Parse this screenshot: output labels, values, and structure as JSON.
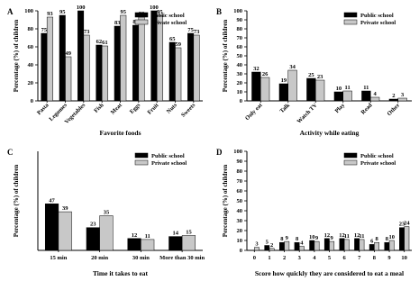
{
  "chart_data": [
    {
      "type": "bar",
      "label": "A",
      "xlabel": "Favorite foods",
      "ylabel": "Percentage (%) of children",
      "categories": [
        "Pasta",
        "Legumes",
        "Vegetables",
        "Fish",
        "Meat",
        "Eggs",
        "Fruit",
        "Nuts",
        "Sweets"
      ],
      "series": [
        {
          "name": "Public school",
          "color": "#000000",
          "values": [
            75,
            95,
            100,
            62,
            83,
            84,
            100,
            65,
            75
          ]
        },
        {
          "name": "Private school",
          "color": "#c8c8c8",
          "values": [
            93,
            49,
            73,
            61,
            95,
            93,
            95,
            59,
            73
          ]
        }
      ],
      "ylim": [
        0,
        100
      ],
      "yticks": [
        0,
        20,
        40,
        60,
        80,
        100
      ],
      "legend": "upper right"
    },
    {
      "type": "bar",
      "label": "B",
      "xlabel": "Activity while eating",
      "ylabel": "Percentage (%) of children",
      "categories": [
        "Only eat",
        "Talk",
        "Watch TV",
        "Play",
        "Read",
        "Other"
      ],
      "series": [
        {
          "name": "Public school",
          "color": "#000000",
          "values": [
            32,
            19,
            25,
            10,
            11,
            2
          ]
        },
        {
          "name": "Private school",
          "color": "#c8c8c8",
          "values": [
            26,
            34,
            23,
            11,
            4,
            3
          ]
        }
      ],
      "ylim": [
        0,
        100
      ],
      "yticks": [
        0,
        10,
        20,
        30,
        40,
        50,
        60,
        70,
        80,
        90,
        100
      ],
      "legend": "upper right"
    },
    {
      "type": "bar",
      "label": "C",
      "xlabel": "Time it takes to eat",
      "ylabel": "Percentage (%) of children",
      "categories": [
        "15 min",
        "20 min",
        "30 min",
        "More than 30 min"
      ],
      "series": [
        {
          "name": "Public school",
          "color": "#000000",
          "values": [
            47,
            23,
            12,
            14
          ]
        },
        {
          "name": "Private school",
          "color": "#c8c8c8",
          "values": [
            39,
            35,
            11,
            15
          ]
        }
      ],
      "ylim": [
        0,
        100
      ],
      "legend": "upper right"
    },
    {
      "type": "bar",
      "label": "D",
      "xlabel": "Score how quickly they are considered to eat a meal",
      "ylabel": "Percentage (%) of children",
      "categories": [
        "0",
        "1",
        "2",
        "3",
        "4",
        "5",
        "6",
        "7",
        "8",
        "9",
        "10"
      ],
      "series": [
        {
          "name": "Public school",
          "color": "#000000",
          "values": [
            null,
            5,
            8,
            8,
            10,
            12,
            12,
            12,
            6,
            8,
            23
          ]
        },
        {
          "name": "Private school",
          "color": "#c8c8c8",
          "values": [
            3,
            2,
            9,
            4,
            9,
            9,
            11,
            11,
            8,
            10,
            24
          ]
        }
      ],
      "ylim": [
        0,
        100
      ],
      "yticks": [
        0,
        10,
        20,
        30,
        40,
        50,
        60,
        70,
        80,
        90,
        100
      ],
      "legend": "upper right"
    }
  ]
}
